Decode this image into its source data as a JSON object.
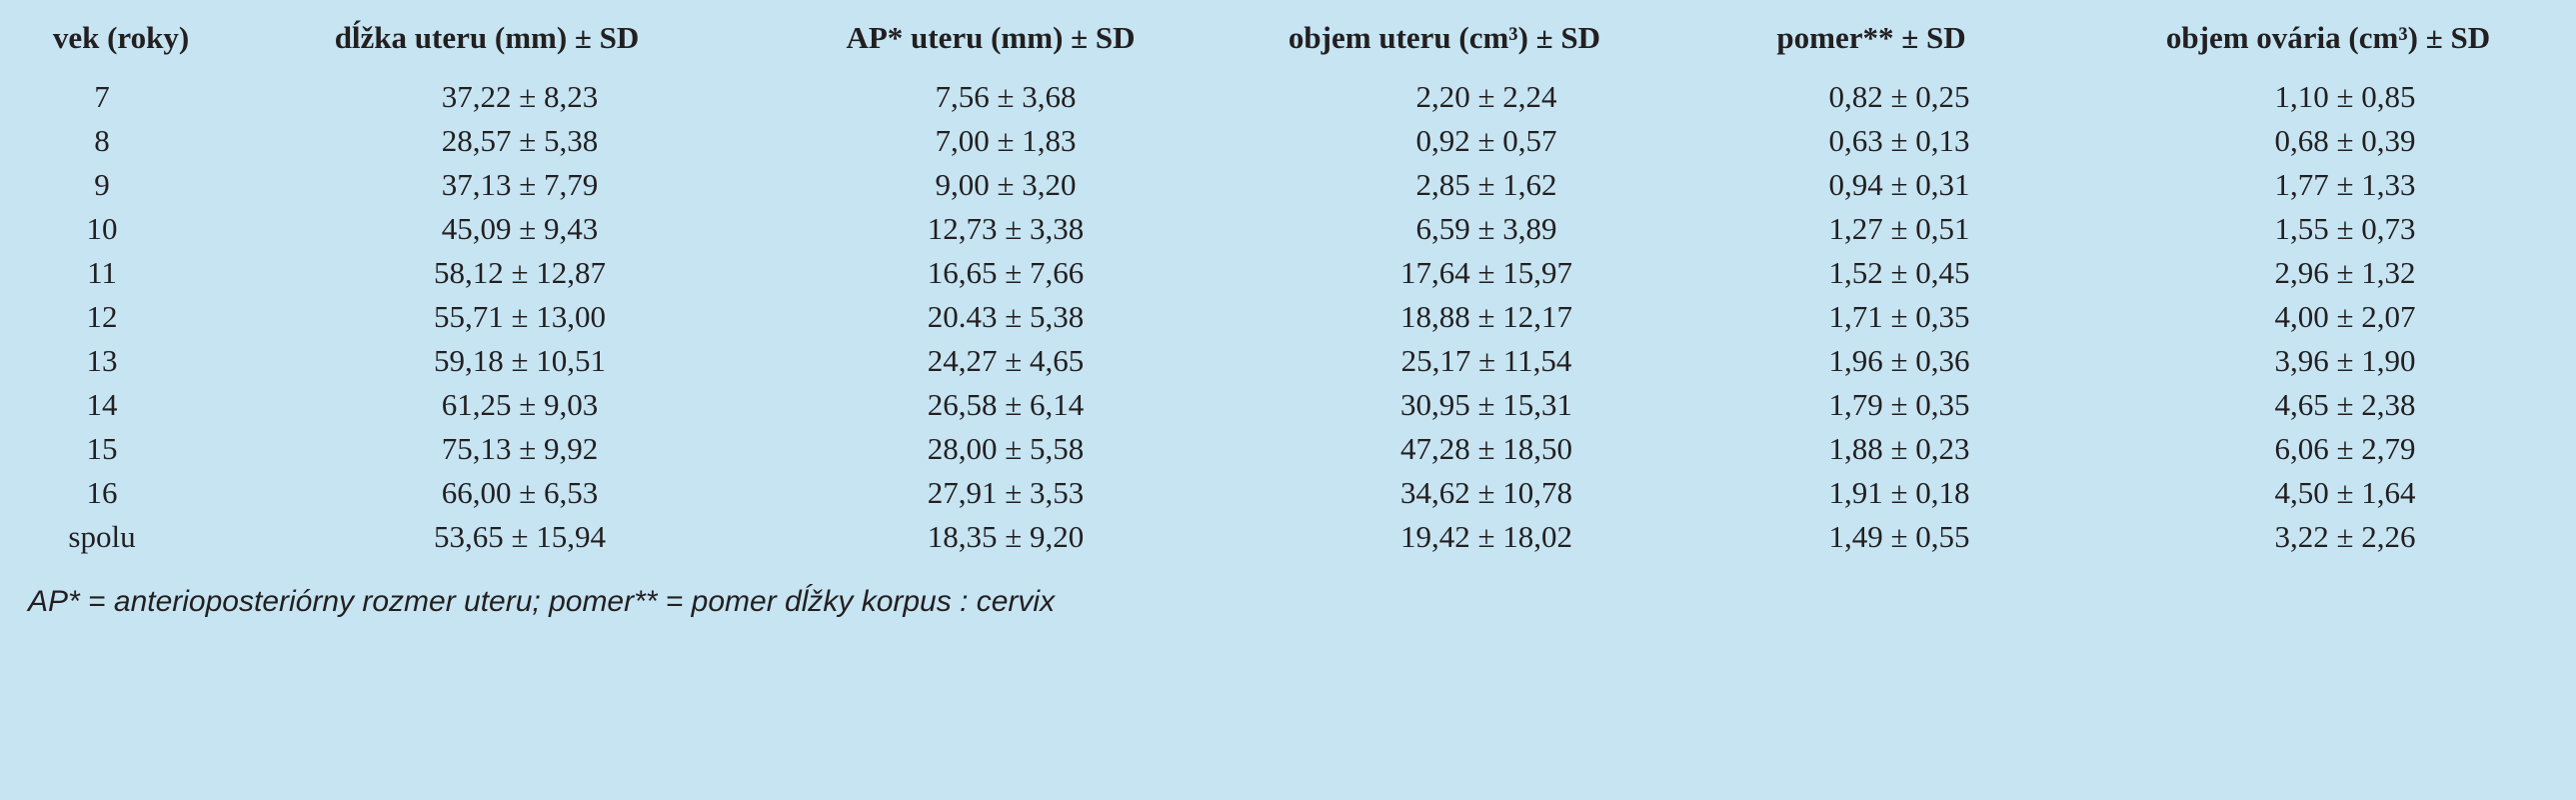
{
  "table": {
    "header": [
      "vek (roky)",
      "dĺžka uteru (mm) ± SD",
      "AP* uteru (mm) ± SD",
      "objem uteru (cm³) ± SD",
      "pomer** ± SD",
      "objem ovária (cm³) ± SD"
    ],
    "rows": [
      [
        "7",
        "37,22 ± 8,23",
        "7,56 ± 3,68",
        "2,20 ± 2,24",
        "0,82 ± 0,25",
        "1,10 ± 0,85"
      ],
      [
        "8",
        "28,57  ± 5,38",
        "7,00 ± 1,83",
        "0,92 ± 0,57",
        "0,63 ± 0,13",
        "0,68 ± 0,39"
      ],
      [
        "9",
        "37,13 ± 7,79",
        "9,00 ± 3,20",
        "2,85 ± 1,62",
        "0,94 ± 0,31",
        "1,77 ± 1,33"
      ],
      [
        "10",
        "45,09 ± 9,43",
        "12,73 ± 3,38",
        "6,59 ± 3,89",
        "1,27 ± 0,51",
        "1,55 ± 0,73"
      ],
      [
        "11",
        "58,12 ± 12,87",
        "16,65 ± 7,66",
        "17,64 ± 15,97",
        "1,52 ± 0,45",
        "2,96 ± 1,32"
      ],
      [
        "12",
        "55,71 ± 13,00",
        "20.43 ± 5,38",
        "18,88 ± 12,17",
        "1,71 ± 0,35",
        "4,00 ± 2,07"
      ],
      [
        "13",
        "59,18 ± 10,51",
        "24,27 ± 4,65",
        "25,17 ± 11,54",
        "1,96 ± 0,36",
        "3,96 ± 1,90"
      ],
      [
        "14",
        "61,25 ± 9,03",
        "26,58 ± 6,14",
        "30,95 ± 15,31",
        "1,79 ± 0,35",
        "4,65 ± 2,38"
      ],
      [
        "15",
        "75,13 ± 9,92",
        "28,00 ± 5,58",
        "47,28 ± 18,50",
        "1,88 ± 0,23",
        "6,06 ± 2,79"
      ],
      [
        "16",
        "66,00 ± 6,53",
        "27,91 ± 3,53",
        "34,62 ± 10,78",
        "1,91 ± 0,18",
        "4,50 ± 1,64"
      ],
      [
        "spolu",
        "53,65 ± 15,94",
        "18,35 ± 9,20",
        "19,42 ± 18,02",
        "1,49 ± 0,55",
        "3,22 ± 2,26"
      ]
    ]
  },
  "footnote": "AP* = anterioposteriórny rozmer uteru; pomer** = pomer dĺžky korpus : cervix"
}
